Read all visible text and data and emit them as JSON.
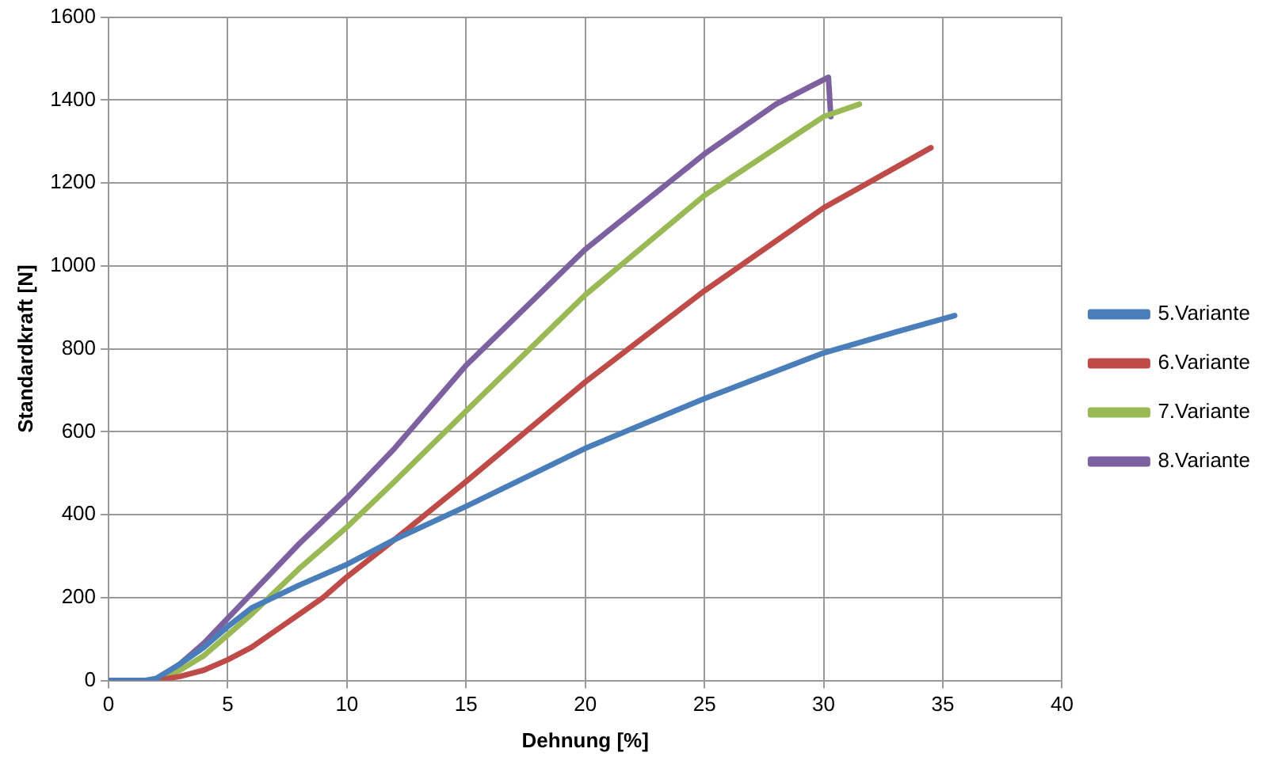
{
  "chart_data": {
    "type": "line",
    "xlabel": "Dehnung [%]",
    "ylabel": "Standardkraft [N]",
    "xlim": [
      0,
      40
    ],
    "xticks": [
      0,
      5,
      10,
      15,
      20,
      25,
      30,
      35,
      40
    ],
    "ylim": [
      0,
      1600
    ],
    "yticks": [
      0,
      200,
      400,
      600,
      800,
      1000,
      1200,
      1400,
      1600
    ],
    "grid": true,
    "legend": "right",
    "marker": "none",
    "line_style": "solid",
    "series": [
      {
        "name": "5.Variante",
        "color": "#4a7ebb",
        "x": [
          0,
          1.5,
          2,
          3,
          4,
          5,
          6,
          8,
          10,
          12,
          15,
          20,
          25,
          30,
          33,
          35.5
        ],
        "values": [
          0,
          0,
          5,
          40,
          80,
          130,
          175,
          230,
          280,
          340,
          420,
          560,
          680,
          790,
          840,
          880
        ]
      },
      {
        "name": "6.Variante",
        "color": "#be4b48",
        "x": [
          0,
          2,
          3,
          4,
          5,
          6,
          7,
          8,
          9,
          10,
          12,
          15,
          20,
          25,
          30,
          34.5
        ],
        "values": [
          0,
          0,
          10,
          25,
          50,
          80,
          120,
          160,
          200,
          250,
          340,
          480,
          720,
          940,
          1140,
          1285
        ]
      },
      {
        "name": "7.Variante",
        "color": "#98b954",
        "x": [
          0,
          2,
          3,
          4,
          5,
          6,
          7,
          8,
          10,
          12,
          15,
          20,
          25,
          30,
          31.5
        ],
        "values": [
          0,
          0,
          25,
          60,
          110,
          160,
          215,
          270,
          370,
          480,
          650,
          930,
          1170,
          1360,
          1390
        ]
      },
      {
        "name": "8.Variante",
        "color": "#7d60a0",
        "x": [
          0,
          2,
          3,
          4,
          5,
          6,
          8,
          10,
          12,
          15,
          20,
          25,
          28,
          30.2,
          30.3
        ],
        "values": [
          0,
          0,
          40,
          90,
          150,
          210,
          330,
          440,
          560,
          760,
          1040,
          1270,
          1390,
          1455,
          1360
        ]
      }
    ]
  }
}
